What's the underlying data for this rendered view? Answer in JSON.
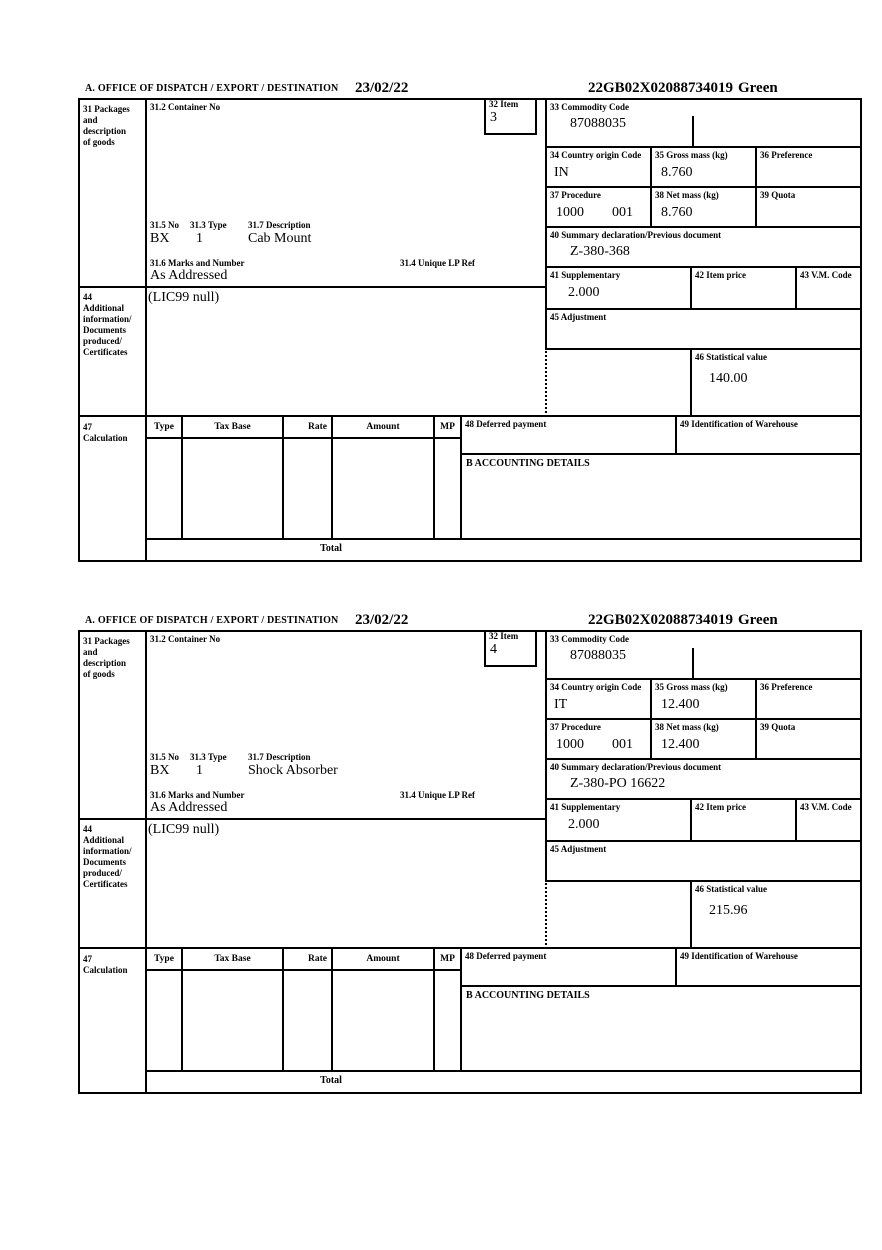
{
  "colors": {
    "border": "#000000",
    "background": "#ffffff",
    "text": "#000000"
  },
  "labels": {
    "header_a": "A.  OFFICE OF DISPATCH / EXPORT / DESTINATION",
    "box31": "31 Packages\nand\ndescription\nof goods",
    "container_no": "31.2 Container No",
    "item32": "32 Item",
    "commodity33": "33 Commodity Code",
    "country34": "34 Country origin Code",
    "gross35": "35 Gross mass (kg)",
    "preference36": "36 Preference",
    "procedure37": "37 Procedure",
    "net38": "38 Net mass (kg)",
    "quota39": "39 Quota",
    "summary40": "40 Summary declaration/Previous document",
    "supplementary41": "41 Supplementary",
    "item_price42": "42 Item price",
    "vm_code43": "43 V.M. Code",
    "box44": "44\nAdditional\ninformation/\nDocuments\nproduced/\nCertificates",
    "adjustment45": "45 Adjustment",
    "statistical46": "46 Statistical value",
    "box47": "47\nCalculation",
    "no315": "31.5 No",
    "type313": "31.3 Type",
    "desc317": "31.7 Description",
    "marks316": "31.6 Marks and Number",
    "lp_ref314": "31.4 Unique LP Ref",
    "col_type": "Type",
    "col_tax_base": "Tax Base",
    "col_rate": "Rate",
    "col_amount": "Amount",
    "col_mp": "MP",
    "deferred48": "48 Deferred payment",
    "warehouse49": "49 Identification of Warehouse",
    "accounting_b": "B ACCOUNTING DETAILS",
    "total": "Total"
  },
  "forms": [
    {
      "date": "23/02/22",
      "reference": "22GB02X02088734019",
      "channel": "Green",
      "item_no": "3",
      "commodity_code": "87088035",
      "country_origin": "IN",
      "gross_mass": "8.760",
      "net_mass": "8.760",
      "procedure": "1000",
      "procedure_ext": "001",
      "summary_declaration": "Z-380-368",
      "supplementary": "2.000",
      "statistical_value": "140.00",
      "package_no": "BX",
      "package_type": "1",
      "goods_description": "Cab Mount",
      "marks": "As Addressed",
      "additional_info": "(LIC99 null)"
    },
    {
      "date": "23/02/22",
      "reference": "22GB02X02088734019",
      "channel": "Green",
      "item_no": "4",
      "commodity_code": "87088035",
      "country_origin": "IT",
      "gross_mass": "12.400",
      "net_mass": "12.400",
      "procedure": "1000",
      "procedure_ext": "001",
      "summary_declaration": "Z-380-PO 16622",
      "supplementary": "2.000",
      "statistical_value": "215.96",
      "package_no": "BX",
      "package_type": "1",
      "goods_description": "Shock Absorber",
      "marks": "As Addressed",
      "additional_info": "(LIC99 null)"
    }
  ]
}
